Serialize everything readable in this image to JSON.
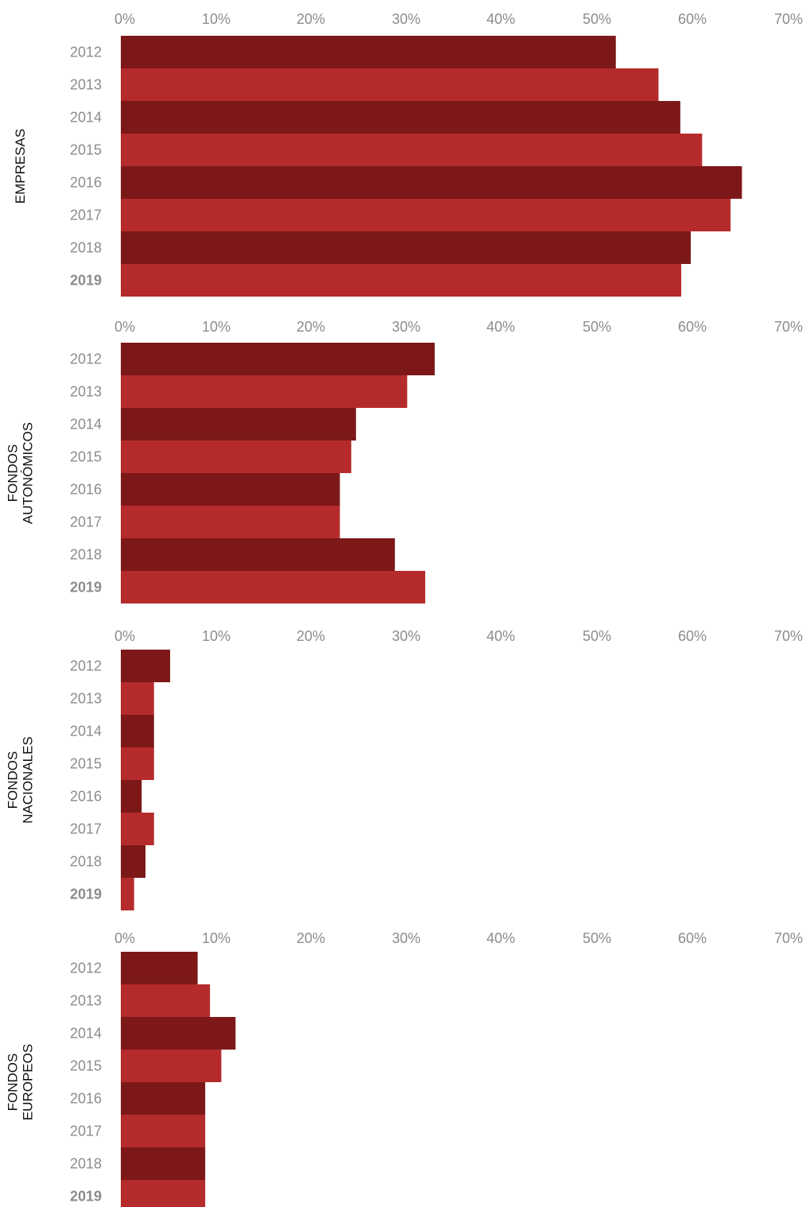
{
  "chart_data": {
    "type": "bar",
    "orientation": "horizontal",
    "x_ticks": [
      "0%",
      "10%",
      "20%",
      "30%",
      "40%",
      "50%",
      "60%",
      "70%"
    ],
    "xlim": [
      0,
      70
    ],
    "categories": [
      "2012",
      "2013",
      "2014",
      "2015",
      "2016",
      "2017",
      "2018",
      "2019"
    ],
    "highlight_category": "2019",
    "colors": {
      "dark": "#7d1818",
      "light": "#b52b2b"
    },
    "groups": [
      {
        "label_lines": [
          "EMPRESAS"
        ],
        "values": [
          52.2,
          56.7,
          59.0,
          61.3,
          65.5,
          64.3,
          60.1,
          59.1
        ]
      },
      {
        "label_lines": [
          "FONDOS",
          "AUTONÓMICOS"
        ],
        "values": [
          33.1,
          30.2,
          24.8,
          24.3,
          23.1,
          23.1,
          28.9,
          32.1
        ]
      },
      {
        "label_lines": [
          "FONDOS",
          "NACIONALES"
        ],
        "values": [
          5.2,
          3.5,
          3.5,
          3.5,
          2.2,
          3.5,
          2.6,
          1.4
        ]
      },
      {
        "label_lines": [
          "FONDOS",
          "EUROPEOS"
        ],
        "values": [
          8.1,
          9.4,
          12.1,
          10.6,
          8.9,
          8.9,
          8.9,
          8.9
        ]
      }
    ]
  }
}
